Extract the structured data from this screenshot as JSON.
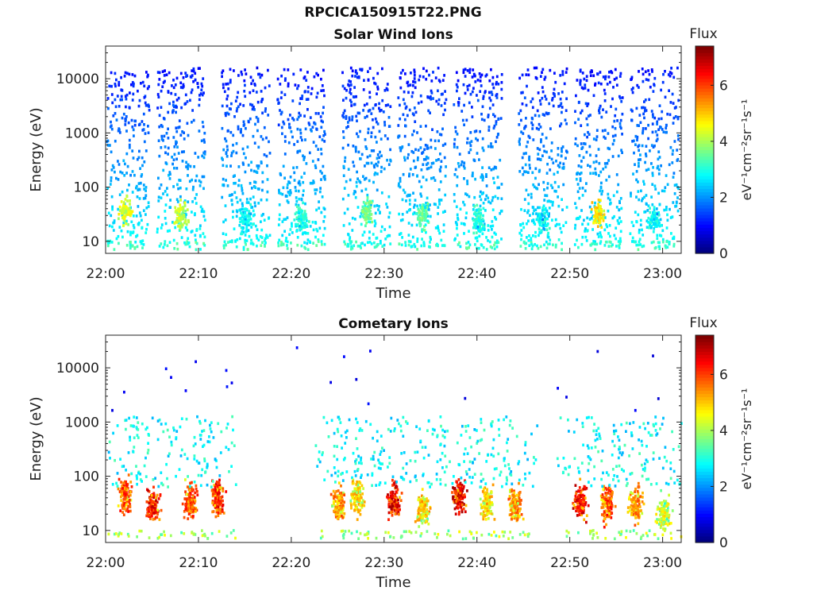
{
  "figure": {
    "filename": "RPCICA150915T22.PNG"
  },
  "colorbar": {
    "label": "Flux",
    "unit_html": "eV⁻¹cm⁻²sr⁻¹s⁻¹",
    "ticks": [
      "0",
      "2",
      "4",
      "6"
    ],
    "range": [
      0,
      7.4
    ],
    "colormap": "jet"
  },
  "chart_data": [
    {
      "type": "heatmap",
      "title": "Solar Wind Ions",
      "xlabel": "Time",
      "ylabel": "Energy (eV)",
      "x_range": [
        "22:00",
        "23:02"
      ],
      "x_ticks": [
        "22:00",
        "22:10",
        "22:20",
        "22:30",
        "22:40",
        "22:50",
        "23:00"
      ],
      "y_scale": "log",
      "y_range": [
        6,
        40000
      ],
      "y_ticks": [
        "10",
        "100",
        "1000",
        "10000"
      ],
      "bursts": [
        {
          "time": "22:02",
          "peak_energy_eV": 35,
          "peak_flux": 4.8
        },
        {
          "time": "22:08",
          "peak_energy_eV": 30,
          "peak_flux": 4.6
        },
        {
          "time": "22:15",
          "peak_energy_eV": 25,
          "peak_flux": 3.2
        },
        {
          "time": "22:21",
          "peak_energy_eV": 25,
          "peak_flux": 3.4
        },
        {
          "time": "22:28",
          "peak_energy_eV": 35,
          "peak_flux": 4.0
        },
        {
          "time": "22:34",
          "peak_energy_eV": 30,
          "peak_flux": 3.8
        },
        {
          "time": "22:40",
          "peak_energy_eV": 25,
          "peak_flux": 3.4
        },
        {
          "time": "22:47",
          "peak_energy_eV": 25,
          "peak_flux": 3.2
        },
        {
          "time": "22:53",
          "peak_energy_eV": 32,
          "peak_flux": 5.2
        },
        {
          "time": "22:59",
          "peak_energy_eV": 25,
          "peak_flux": 3.2
        }
      ]
    },
    {
      "type": "heatmap",
      "title": "Cometary Ions",
      "xlabel": "Time",
      "ylabel": "Energy (eV)",
      "x_range": [
        "22:00",
        "23:02"
      ],
      "x_ticks": [
        "22:00",
        "22:10",
        "22:20",
        "22:30",
        "22:40",
        "22:50",
        "23:00"
      ],
      "y_scale": "log",
      "y_range": [
        6,
        40000
      ],
      "y_ticks": [
        "10",
        "100",
        "1000",
        "10000"
      ],
      "bursts": [
        {
          "time": "22:02",
          "peak_energy_eV": 45,
          "peak_flux": 6.5
        },
        {
          "time": "22:05",
          "peak_energy_eV": 30,
          "peak_flux": 7.0
        },
        {
          "time": "22:09",
          "peak_energy_eV": 35,
          "peak_flux": 6.5
        },
        {
          "time": "22:12",
          "peak_energy_eV": 40,
          "peak_flux": 6.8
        },
        {
          "time": "22:25",
          "peak_energy_eV": 30,
          "peak_flux": 6.0
        },
        {
          "time": "22:27",
          "peak_energy_eV": 40,
          "peak_flux": 5.5
        },
        {
          "time": "22:31",
          "peak_energy_eV": 35,
          "peak_flux": 7.2
        },
        {
          "time": "22:34",
          "peak_energy_eV": 25,
          "peak_flux": 5.5
        },
        {
          "time": "22:38",
          "peak_energy_eV": 40,
          "peak_flux": 7.2
        },
        {
          "time": "22:41",
          "peak_energy_eV": 30,
          "peak_flux": 5.5
        },
        {
          "time": "22:44",
          "peak_energy_eV": 30,
          "peak_flux": 6.0
        },
        {
          "time": "22:51",
          "peak_energy_eV": 35,
          "peak_flux": 7.0
        },
        {
          "time": "22:54",
          "peak_energy_eV": 30,
          "peak_flux": 6.5
        },
        {
          "time": "22:57",
          "peak_energy_eV": 30,
          "peak_flux": 6.0
        },
        {
          "time": "23:00",
          "peak_energy_eV": 20,
          "peak_flux": 5.0
        }
      ]
    }
  ]
}
